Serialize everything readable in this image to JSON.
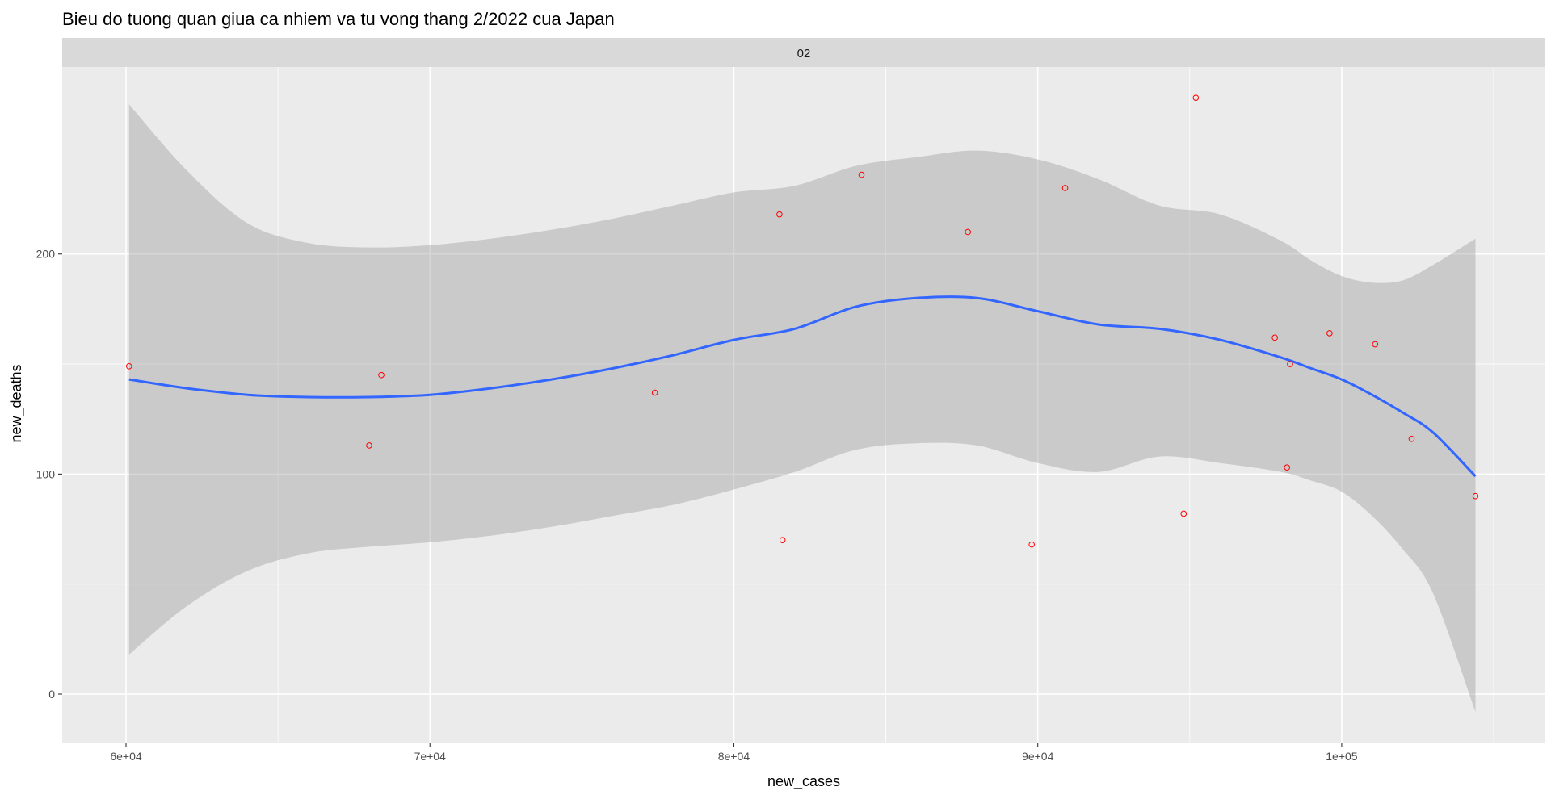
{
  "chart_data": {
    "type": "scatter",
    "title": "Bieu do tuong quan giua ca nhiem va tu vong thang 2/2022 cua Japan",
    "facet_label": "02",
    "xlabel": "new_cases",
    "ylabel": "new_deaths",
    "xlim": [
      57900,
      106700
    ],
    "ylim": [
      -22,
      285
    ],
    "x_ticks": [
      60000,
      70000,
      80000,
      90000,
      100000
    ],
    "x_tick_labels": [
      "6e+04",
      "7e+04",
      "8e+04",
      "9e+04",
      "1e+05"
    ],
    "y_ticks": [
      0,
      100,
      200
    ],
    "y_tick_labels": [
      "0",
      "100",
      "200"
    ],
    "grid": true,
    "colors": {
      "panel_background": "#EBEBEB",
      "strip_background": "#D9D9D9",
      "grid": "#FFFFFF",
      "points": "#FF0000",
      "smooth_line": "#3366FF",
      "confidence_band": "#999999"
    },
    "series": [
      {
        "type": "points",
        "x": [
          60100,
          68000,
          68400,
          77400,
          81500,
          81600,
          84200,
          87700,
          89800,
          90900,
          94800,
          95200,
          97800,
          98200,
          98300,
          99600,
          101100,
          102300,
          104400
        ],
        "y": [
          149,
          113,
          145,
          137,
          218,
          70,
          236,
          210,
          68,
          230,
          82,
          271,
          162,
          103,
          150,
          164,
          159,
          116,
          90
        ]
      },
      {
        "type": "smooth",
        "method": "loess",
        "x": [
          60100,
          62000,
          64000,
          66000,
          68000,
          70000,
          72000,
          74000,
          76000,
          78000,
          80000,
          82000,
          84000,
          86000,
          88000,
          90000,
          92000,
          94000,
          96000,
          98000,
          99000,
          100000,
          101000,
          102000,
          103000,
          104400
        ],
        "y": [
          143,
          139,
          136,
          135,
          135,
          136,
          139,
          143,
          148,
          154,
          161,
          166,
          176,
          180,
          180,
          174,
          168,
          166,
          161,
          153,
          148,
          143,
          136,
          128,
          119,
          99
        ],
        "lower": [
          18,
          40,
          56,
          64,
          67,
          69,
          72,
          76,
          81,
          86,
          93,
          101,
          111,
          114,
          113,
          105,
          101,
          108,
          105,
          101,
          97,
          92,
          81,
          66,
          46,
          -8
        ],
        "upper": [
          268,
          238,
          214,
          205,
          203,
          204,
          207,
          211,
          216,
          222,
          228,
          231,
          240,
          244,
          247,
          243,
          234,
          222,
          218,
          206,
          197,
          190,
          187,
          188,
          195,
          207
        ]
      }
    ]
  }
}
